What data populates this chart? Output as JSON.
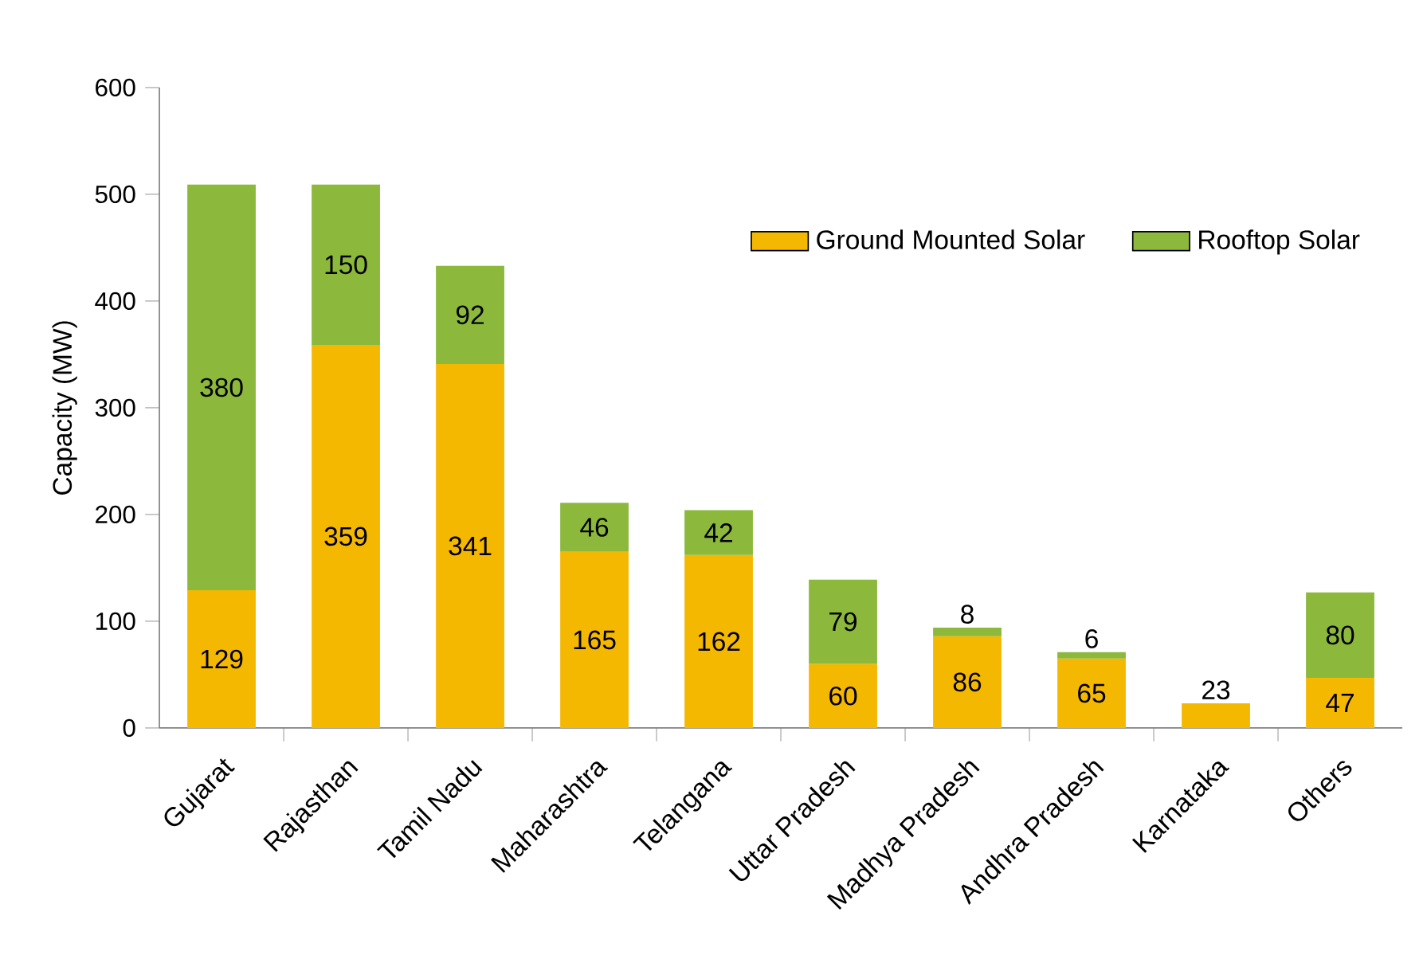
{
  "chart_data": {
    "type": "bar",
    "stacked": true,
    "ylabel": "Capacity (MW)",
    "categories": [
      "Gujarat",
      "Rajasthan",
      "Tamil Nadu",
      "Maharashtra",
      "Telangana",
      "Uttar Pradesh",
      "Madhya Pradesh",
      "Andhra Pradesh",
      "Karnataka",
      "Others"
    ],
    "series": [
      {
        "name": "Ground Mounted Solar",
        "color": "#f5b800",
        "values": [
          129,
          359,
          341,
          165,
          162,
          60,
          86,
          65,
          23,
          47
        ]
      },
      {
        "name": "Rooftop Solar",
        "color": "#8cb83c",
        "values": [
          380,
          150,
          92,
          46,
          42,
          79,
          8,
          6,
          null,
          80
        ]
      }
    ],
    "ylim": [
      0,
      600
    ],
    "yticks": [
      0,
      100,
      200,
      300,
      400,
      500,
      600
    ],
    "data_labels": true,
    "legend": "top right",
    "grid": false
  }
}
